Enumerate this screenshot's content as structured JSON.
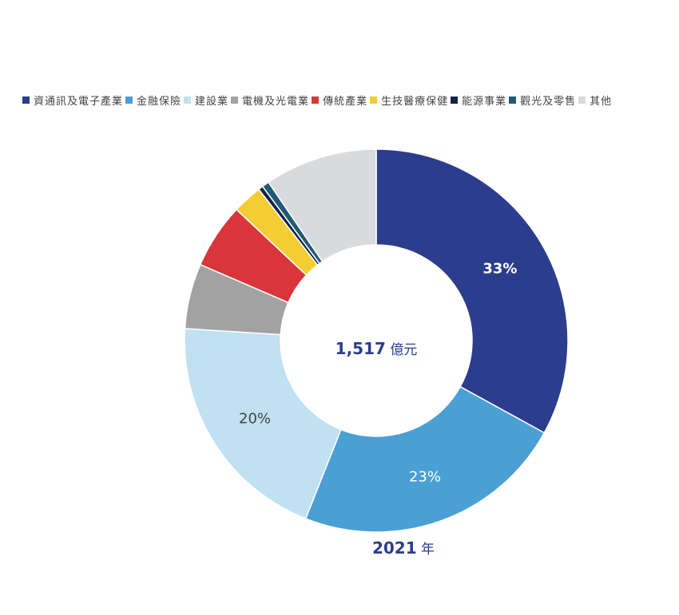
{
  "chart_data": {
    "type": "pie",
    "donut": true,
    "categories": [
      "資通訊及電子產業",
      "金融保險",
      "建設業",
      "電機及光電業",
      "傳統產業",
      "生技醫療保健",
      "能源事業",
      "觀光及零售",
      "其他"
    ],
    "values": [
      33,
      23,
      20,
      5.5,
      5.5,
      2.5,
      0.4,
      0.6,
      9.5
    ],
    "unit": "%",
    "data_labels": [
      "33%",
      "23%",
      "20%",
      "",
      "",
      "",
      "",
      "",
      ""
    ],
    "colors": [
      "#2b3d8c",
      "#4a9fd5",
      "#bfe1f2",
      "#a2a2a2",
      "#d9353b",
      "#f4cd33",
      "#16204a",
      "#1f5c74",
      "#d9dadb"
    ],
    "label_colors": [
      "#ffffff",
      "#ffffff",
      "#444444"
    ],
    "center_label": {
      "value": "1,517",
      "unit": "億元"
    },
    "footer": {
      "value": "2021",
      "unit": "年"
    },
    "legend_position": "top"
  }
}
